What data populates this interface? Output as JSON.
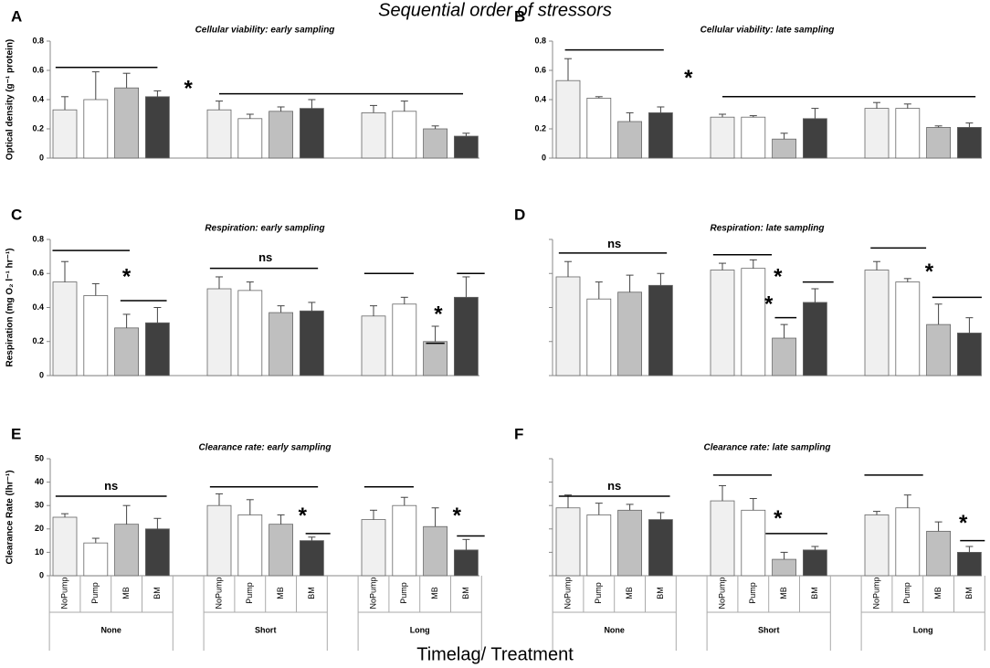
{
  "title": "Sequential order of stressors",
  "xlabel": "Timelag/ Treatment",
  "chart_data": [
    {
      "type": "bar",
      "panel": "A",
      "title": "Cellular viability: early sampling",
      "ylabel": "Optical density (g⁻¹ protein)",
      "ylim": [
        0,
        0.8
      ],
      "yticks": [
        0,
        0.2,
        0.4,
        0.6,
        0.8
      ],
      "tick_labels": true,
      "categories": [
        null,
        null,
        null
      ],
      "colors": [
        "#f0f0f0",
        "#ffffff",
        "#bfbfbf",
        "#404040"
      ],
      "values": [
        [
          0.33,
          0.4,
          0.48,
          0.42
        ],
        [
          0.33,
          0.27,
          0.32,
          0.34
        ],
        [
          0.31,
          0.32,
          0.2,
          0.15
        ]
      ],
      "errors": [
        [
          0.09,
          0.19,
          0.1,
          0.04
        ],
        [
          0.06,
          0.03,
          0.03,
          0.06
        ],
        [
          0.05,
          0.07,
          0.02,
          0.02
        ]
      ],
      "sig_lines": [
        {
          "x": [
            -0.3,
            3.0
          ],
          "y": 0.62
        },
        {
          "x": [
            5.0,
            12.9
          ],
          "y": 0.44
        }
      ],
      "marks": [
        {
          "text": "*",
          "x": 4.0,
          "y": 0.5
        }
      ]
    },
    {
      "type": "bar",
      "panel": "B",
      "title": "Cellular viability: late sampling",
      "ylim": [
        0,
        0.8
      ],
      "yticks": [
        0,
        0.2,
        0.4,
        0.6,
        0.8
      ],
      "tick_labels": true,
      "categories": [
        null,
        null,
        null
      ],
      "colors": [
        "#f0f0f0",
        "#ffffff",
        "#bfbfbf",
        "#404040"
      ],
      "values": [
        [
          0.53,
          0.41,
          0.25,
          0.31
        ],
        [
          0.28,
          0.28,
          0.13,
          0.27
        ],
        [
          0.34,
          0.34,
          0.21,
          0.21
        ]
      ],
      "errors": [
        [
          0.15,
          0.01,
          0.06,
          0.04
        ],
        [
          0.02,
          0.01,
          0.04,
          0.07
        ],
        [
          0.04,
          0.03,
          0.01,
          0.03
        ]
      ],
      "sig_lines": [
        {
          "x": [
            -0.1,
            3.1
          ],
          "y": 0.74
        },
        {
          "x": [
            5.0,
            13.2
          ],
          "y": 0.42
        }
      ],
      "marks": [
        {
          "text": "*",
          "x": 3.9,
          "y": 0.57
        }
      ]
    },
    {
      "type": "bar",
      "panel": "C",
      "title": "Respiration: early sampling",
      "ylabel": "Respiration (mg O₂ l⁻¹ hr⁻¹)",
      "ylim": [
        0,
        0.8
      ],
      "yticks": [
        0,
        0.2,
        0.4,
        0.6,
        0.8
      ],
      "tick_labels": true,
      "categories": [
        null,
        null,
        null
      ],
      "colors": [
        "#f0f0f0",
        "#ffffff",
        "#bfbfbf",
        "#404040"
      ],
      "values": [
        [
          0.55,
          0.47,
          0.28,
          0.31
        ],
        [
          0.51,
          0.5,
          0.37,
          0.38
        ],
        [
          0.35,
          0.42,
          0.2,
          0.46
        ]
      ],
      "errors": [
        [
          0.12,
          0.07,
          0.08,
          0.09
        ],
        [
          0.07,
          0.05,
          0.04,
          0.05
        ],
        [
          0.06,
          0.04,
          0.09,
          0.12
        ]
      ],
      "sig_lines": [
        {
          "x": [
            -0.4,
            2.1
          ],
          "y": 0.735
        },
        {
          "x": [
            1.8,
            3.3
          ],
          "y": 0.44
        },
        {
          "x": [
            4.7,
            8.2
          ],
          "y": 0.63
        },
        {
          "x": [
            9.7,
            11.3
          ],
          "y": 0.6
        },
        {
          "x": [
            11.7,
            12.3
          ],
          "y": 0.19
        },
        {
          "x": [
            12.7,
            13.6
          ],
          "y": 0.6
        }
      ],
      "marks": [
        {
          "text": "*",
          "x": 2.0,
          "y": 0.6
        },
        {
          "text": "ns",
          "x": 6.5,
          "y": 0.69
        },
        {
          "text": "*",
          "x": 12.1,
          "y": 0.38
        }
      ]
    },
    {
      "type": "bar",
      "panel": "D",
      "title": "Respiration: late sampling",
      "ylim": [
        0,
        0.8
      ],
      "yticks": [
        0,
        0.2,
        0.4,
        0.6,
        0.8
      ],
      "tick_labels": false,
      "categories": [
        null,
        null,
        null
      ],
      "colors": [
        "#f0f0f0",
        "#ffffff",
        "#bfbfbf",
        "#404040"
      ],
      "values": [
        [
          0.58,
          0.45,
          0.49,
          0.53
        ],
        [
          0.62,
          0.63,
          0.22,
          0.43
        ],
        [
          0.62,
          0.55,
          0.3,
          0.25
        ]
      ],
      "errors": [
        [
          0.09,
          0.1,
          0.1,
          0.07
        ],
        [
          0.04,
          0.05,
          0.08,
          0.08
        ],
        [
          0.05,
          0.02,
          0.12,
          0.09
        ]
      ],
      "sig_lines": [
        {
          "x": [
            -0.3,
            3.2
          ],
          "y": 0.72
        },
        {
          "x": [
            4.7,
            6.6
          ],
          "y": 0.71
        },
        {
          "x": [
            6.7,
            7.4
          ],
          "y": 0.34
        },
        {
          "x": [
            7.6,
            8.6
          ],
          "y": 0.55
        },
        {
          "x": [
            9.8,
            11.6
          ],
          "y": 0.75
        },
        {
          "x": [
            11.8,
            13.4
          ],
          "y": 0.46
        }
      ],
      "marks": [
        {
          "text": "ns",
          "x": 1.5,
          "y": 0.77
        },
        {
          "text": "*",
          "x": 6.8,
          "y": 0.6
        },
        {
          "text": "*",
          "x": 6.5,
          "y": 0.44
        },
        {
          "text": "*",
          "x": 11.7,
          "y": 0.63
        }
      ]
    },
    {
      "type": "bar",
      "panel": "E",
      "title": "Clearance rate: early sampling",
      "ylabel": "Clearance Rate (lhr⁻¹)",
      "ylim": [
        0,
        50
      ],
      "yticks": [
        0,
        10,
        20,
        30,
        40,
        50
      ],
      "tick_labels": true,
      "categories": [
        "None",
        "Short",
        "Long"
      ],
      "bar_labels": [
        "NoPump",
        "Pump",
        "MB",
        "BM"
      ],
      "colors": [
        "#f0f0f0",
        "#ffffff",
        "#bfbfbf",
        "#404040"
      ],
      "values": [
        [
          25,
          14,
          22,
          20
        ],
        [
          30,
          26,
          22,
          15
        ],
        [
          24,
          30,
          21,
          11
        ]
      ],
      "errors": [
        [
          1.5,
          2,
          8,
          4.5
        ],
        [
          5,
          6.5,
          4,
          1.5
        ],
        [
          4,
          3.5,
          8,
          4.5
        ]
      ],
      "sig_lines": [
        {
          "x": [
            -0.3,
            3.3
          ],
          "y": 34
        },
        {
          "x": [
            4.7,
            8.2
          ],
          "y": 38
        },
        {
          "x": [
            7.8,
            8.6
          ],
          "y": 18
        },
        {
          "x": [
            9.7,
            11.3
          ],
          "y": 38
        },
        {
          "x": [
            12.7,
            13.6
          ],
          "y": 17
        }
      ],
      "marks": [
        {
          "text": "ns",
          "x": 1.5,
          "y": 38
        },
        {
          "text": "*",
          "x": 7.7,
          "y": 27
        },
        {
          "text": "*",
          "x": 12.7,
          "y": 27
        }
      ]
    },
    {
      "type": "bar",
      "panel": "F",
      "title": "Clearance rate: late sampling",
      "ylim": [
        0,
        50
      ],
      "yticks": [
        0,
        10,
        20,
        30,
        40,
        50
      ],
      "tick_labels": false,
      "categories": [
        "None",
        "Short",
        "Long"
      ],
      "bar_labels": [
        "NoPump",
        "Pump",
        "MB",
        "BM"
      ],
      "colors": [
        "#f0f0f0",
        "#ffffff",
        "#bfbfbf",
        "#404040"
      ],
      "values": [
        [
          29,
          26,
          28,
          24
        ],
        [
          32,
          28,
          7,
          11
        ],
        [
          26,
          29,
          19,
          10
        ]
      ],
      "errors": [
        [
          5.5,
          5,
          2.5,
          3
        ],
        [
          6.5,
          5,
          3,
          1.5
        ],
        [
          1.5,
          5.5,
          4,
          2.5
        ]
      ],
      "sig_lines": [
        {
          "x": [
            -0.3,
            3.3
          ],
          "y": 34
        },
        {
          "x": [
            4.7,
            6.6
          ],
          "y": 43
        },
        {
          "x": [
            6.4,
            8.4
          ],
          "y": 18
        },
        {
          "x": [
            9.6,
            11.5
          ],
          "y": 43
        },
        {
          "x": [
            12.7,
            13.5
          ],
          "y": 15
        }
      ],
      "marks": [
        {
          "text": "ns",
          "x": 1.5,
          "y": 38
        },
        {
          "text": "*",
          "x": 6.8,
          "y": 26
        },
        {
          "text": "*",
          "x": 12.8,
          "y": 24
        }
      ]
    }
  ]
}
